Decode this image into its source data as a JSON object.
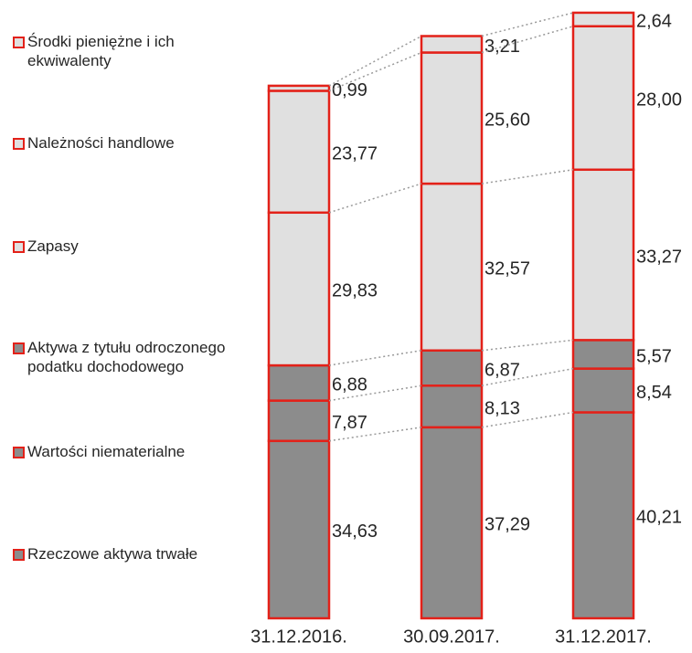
{
  "chart_data": {
    "type": "stacked_bar",
    "categories": [
      "31.12.2016.",
      "30.09.2017.",
      "31.12.2017."
    ],
    "series": [
      {
        "name": "Rzeczowe aktywa trwałe",
        "color": "#8c8c8c",
        "values": [
          34.63,
          37.29,
          40.21
        ],
        "value_labels": [
          "34,63",
          "37,29",
          "40,21"
        ]
      },
      {
        "name": "Wartości niematerialne",
        "color": "#8c8c8c",
        "values": [
          7.87,
          8.13,
          8.54
        ],
        "value_labels": [
          "7,87",
          "8,13",
          "8,54"
        ]
      },
      {
        "name": "Aktywa z tytułu odroczonego podatku dochodowego",
        "color": "#8c8c8c",
        "values": [
          6.88,
          6.87,
          5.57
        ],
        "value_labels": [
          "6,88",
          "6,87",
          "5,57"
        ]
      },
      {
        "name": "Zapasy",
        "color": "#e0e0e0",
        "values": [
          29.83,
          32.57,
          33.27
        ],
        "value_labels": [
          "29,83",
          "32,57",
          "33,27"
        ]
      },
      {
        "name": "Należności handlowe",
        "color": "#e0e0e0",
        "values": [
          23.77,
          25.6,
          28.0
        ],
        "value_labels": [
          "23,77",
          "25,60",
          "28,00"
        ]
      },
      {
        "name": "Środki pieniężne i ich ekwiwalenty",
        "color": "#e0e0e0",
        "values": [
          0.99,
          3.21,
          2.64
        ],
        "value_labels": [
          "0,99",
          "3,21",
          "2,64"
        ]
      }
    ],
    "edge_color": "#e32119",
    "ylim": [
      0,
      120
    ]
  }
}
